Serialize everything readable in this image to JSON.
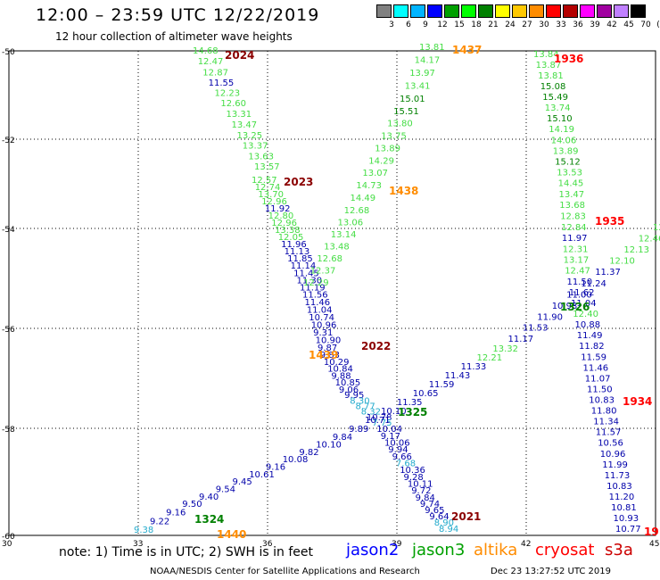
{
  "header": {
    "title": "12:00 – 23:59 UTC 12/22/2019",
    "subtitle": "12 hour collection of altimeter wave heights"
  },
  "legend": {
    "colors": [
      "#808080",
      "#00ffff",
      "#00b4ff",
      "#0000ff",
      "#00a000",
      "#00ff00",
      "#008000",
      "#ffff00",
      "#ffc800",
      "#ff8c00",
      "#ff0000",
      "#b40000",
      "#ff00ff",
      "#a000a0",
      "#c080ff",
      "#000000"
    ],
    "labels": [
      "3",
      "6",
      "9",
      "12",
      "15",
      "18",
      "21",
      "24",
      "27",
      "30",
      "33",
      "36",
      "39",
      "42",
      "45",
      "70",
      "(ft)"
    ]
  },
  "axes": {
    "x_ticks": [
      "30",
      "33",
      "36",
      "39",
      "42",
      "45"
    ],
    "y_ticks": [
      "-50",
      "-52",
      "-54",
      "-56",
      "-58",
      "-60"
    ]
  },
  "tracks": [
    {
      "name": "t2024",
      "values": [
        "14.68",
        "12.47",
        "12.87",
        "11.55",
        "12.23",
        "12.60",
        "13.31",
        "13.47",
        "13.25",
        "13.37",
        "13.63",
        "13.57"
      ],
      "colors": [
        "#44dd44",
        "#44dd44",
        "#44dd44",
        "#0000aa",
        "#44dd44",
        "#44dd44",
        "#44dd44",
        "#44dd44",
        "#44dd44",
        "#44dd44",
        "#44dd44",
        "#44dd44"
      ]
    },
    {
      "name": "t2023",
      "values": [
        "12.57",
        "12.74",
        "13.70",
        "12.96",
        "11.92",
        "12.80",
        "12.96",
        "13.38",
        "12.05",
        "11.96",
        "11.13",
        "11.85",
        "11.14",
        "11.45",
        "11.30",
        "11.19",
        "11.56",
        "11.46",
        "11.04",
        "10.74",
        "10.96",
        "9.31",
        "10.90",
        "9.87",
        "9.83",
        "10.29",
        "10.84",
        "9.88",
        "10.85",
        "9.06",
        "9.95",
        "8.30",
        "8.77",
        "8.32",
        "10.78",
        "7.75",
        "10.04",
        "9.17",
        "10.06",
        "9.94",
        "9.66",
        "7.68",
        "10.36",
        "9.28",
        "10.11",
        "9.72",
        "9.84",
        "9.74",
        "9.65",
        "9.64",
        "8.90",
        "8.94"
      ],
      "colors": [
        "#44dd44",
        "#44dd44",
        "#44dd44",
        "#44dd44",
        "#0000aa",
        "#44dd44",
        "#44dd44",
        "#44dd44",
        "#44dd44",
        "#0000aa",
        "#0000aa",
        "#0000aa",
        "#0000aa",
        "#0000aa",
        "#0000aa",
        "#0000aa",
        "#0000aa",
        "#0000aa",
        "#0000aa",
        "#0000aa",
        "#0000aa",
        "#0000aa",
        "#0000aa",
        "#0000aa",
        "#0000aa",
        "#0000aa",
        "#0000aa",
        "#0000aa",
        "#0000aa",
        "#0000aa",
        "#0000aa",
        "#22aacc",
        "#22aacc",
        "#22aacc",
        "#0000aa",
        "#22aacc",
        "#0000aa",
        "#0000aa",
        "#0000aa",
        "#0000aa",
        "#0000aa",
        "#22aacc",
        "#0000aa",
        "#0000aa",
        "#0000aa",
        "#0000aa",
        "#0000aa",
        "#0000aa",
        "#0000aa",
        "#0000aa",
        "#22aacc",
        "#22aacc"
      ]
    },
    {
      "name": "t1437",
      "values": [
        "13.81",
        "14.17",
        "13.97",
        "13.41",
        "15.01",
        "15.51",
        "13.80",
        "13.75",
        "13.89",
        "14.29",
        "13.07",
        "14.73",
        "14.49",
        "12.68",
        "13.06",
        "13.14",
        "13.48",
        "12.68",
        "12.37",
        "12.29"
      ],
      "colors": [
        "#44dd44",
        "#44dd44",
        "#44dd44",
        "#44dd44",
        "#008000",
        "#008000",
        "#44dd44",
        "#44dd44",
        "#44dd44",
        "#44dd44",
        "#44dd44",
        "#44dd44",
        "#44dd44",
        "#44dd44",
        "#44dd44",
        "#44dd44",
        "#44dd44",
        "#44dd44",
        "#44dd44",
        "#44dd44"
      ]
    },
    {
      "name": "t1936",
      "values": [
        "13.84",
        "13.87",
        "13.81",
        "15.08",
        "15.49",
        "13.74",
        "15.10",
        "14.19",
        "14.06",
        "13.89",
        "15.12",
        "13.53",
        "14.45",
        "13.47",
        "13.68",
        "12.83",
        "12.84",
        "11.97",
        "12.31",
        "13.17",
        "12.47",
        "11.50",
        "11.62",
        "11.04",
        "12.40",
        "10.88",
        "11.49",
        "11.82",
        "11.59",
        "11.46",
        "11.07",
        "11.50",
        "10.83",
        "11.80",
        "11.34",
        "11.57",
        "10.56",
        "10.96",
        "11.99",
        "11.73",
        "10.83",
        "11.20",
        "10.81",
        "10.93",
        "10.77"
      ],
      "colors": [
        "#44dd44",
        "#44dd44",
        "#44dd44",
        "#008000",
        "#008000",
        "#44dd44",
        "#008000",
        "#44dd44",
        "#44dd44",
        "#44dd44",
        "#008000",
        "#44dd44",
        "#44dd44",
        "#44dd44",
        "#44dd44",
        "#44dd44",
        "#44dd44",
        "#0000aa",
        "#44dd44",
        "#44dd44",
        "#44dd44",
        "#0000aa",
        "#0000aa",
        "#0000aa",
        "#44dd44",
        "#0000aa",
        "#0000aa",
        "#0000aa",
        "#0000aa",
        "#0000aa",
        "#0000aa",
        "#0000aa",
        "#0000aa",
        "#0000aa",
        "#0000aa",
        "#0000aa",
        "#0000aa",
        "#0000aa",
        "#0000aa",
        "#0000aa",
        "#0000aa",
        "#0000aa",
        "#0000aa",
        "#0000aa",
        "#0000aa"
      ]
    },
    {
      "name": "t1326",
      "values": [
        "12.24",
        "12.46",
        "12.13",
        "12.10",
        "11.37",
        "11.24",
        "11.00",
        "10.93",
        "11.90",
        "11.53",
        "11.17",
        "13.32",
        "12.21",
        "11.33",
        "11.43",
        "11.59",
        "10.65",
        "11.35",
        "10.10",
        "10.71",
        "9.89",
        "9.84",
        "10.10",
        "9.82",
        "10.08",
        "9.16",
        "10.61",
        "9.45",
        "9.54",
        "9.40",
        "9.50",
        "9.16",
        "9.22",
        "9.38"
      ],
      "colors": [
        "#44dd44",
        "#44dd44",
        "#44dd44",
        "#44dd44",
        "#0000aa",
        "#0000aa",
        "#0000aa",
        "#0000aa",
        "#0000aa",
        "#0000aa",
        "#0000aa",
        "#44dd44",
        "#44dd44",
        "#0000aa",
        "#0000aa",
        "#0000aa",
        "#0000aa",
        "#0000aa",
        "#0000aa",
        "#0000aa",
        "#0000aa",
        "#0000aa",
        "#0000aa",
        "#0000aa",
        "#0000aa",
        "#0000aa",
        "#0000aa",
        "#0000aa",
        "#0000aa",
        "#0000aa",
        "#0000aa",
        "#0000aa",
        "#0000aa",
        "#22aacc"
      ]
    }
  ],
  "labels": [
    {
      "text": "2024",
      "color": "#8b0000"
    },
    {
      "text": "2023",
      "color": "#8b0000"
    },
    {
      "text": "2022",
      "color": "#8b0000"
    },
    {
      "text": "2021",
      "color": "#8b0000"
    },
    {
      "text": "1437",
      "color": "#ff8c00"
    },
    {
      "text": "1438",
      "color": "#ff8c00"
    },
    {
      "text": "1439",
      "color": "#ff8c00"
    },
    {
      "text": "1440",
      "color": "#ff8c00"
    },
    {
      "text": "1936",
      "color": "#ff0000"
    },
    {
      "text": "1935",
      "color": "#ff0000"
    },
    {
      "text": "1934",
      "color": "#ff0000"
    },
    {
      "text": "19",
      "color": "#ff0000"
    },
    {
      "text": "1326",
      "color": "#008000"
    },
    {
      "text": "1325",
      "color": "#008000"
    },
    {
      "text": "1324",
      "color": "#008000"
    }
  ],
  "note": "note: 1) Time is in UTC; 2) SWH is in feet",
  "satellites": [
    {
      "name": "jason2",
      "color": "#0000ff"
    },
    {
      "name": "jason3",
      "color": "#00a000"
    },
    {
      "name": "altika",
      "color": "#ff8c00"
    },
    {
      "name": "cryosat",
      "color": "#ff0000"
    },
    {
      "name": "s3a",
      "color": "#cc0000"
    }
  ],
  "footer": "NOAA/NESDIS Center for Satellite Applications and Research",
  "footer_date": "Dec 23 13:27:52 UTC 2019"
}
